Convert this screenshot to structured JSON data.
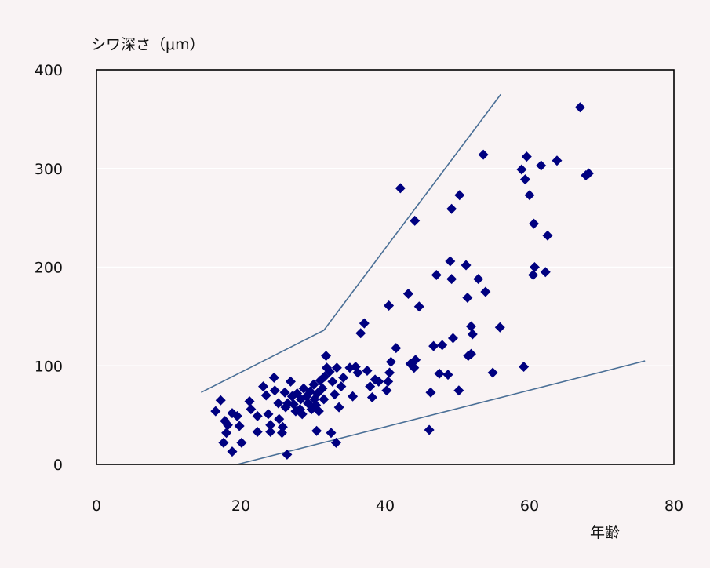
{
  "chart_data": {
    "type": "scatter",
    "title": "",
    "xlabel": "年齢",
    "ylabel": "シワ深さ（μm）",
    "xlim": [
      0,
      80
    ],
    "ylim": [
      0,
      400
    ],
    "xticks": [
      0,
      20,
      40,
      60,
      80
    ],
    "yticks": [
      0,
      100,
      200,
      300,
      400
    ],
    "grid": "horizontal",
    "colors": {
      "points": "#000080",
      "lines": "#4a6f96",
      "grid": "#ffffff",
      "frame": "#000000"
    },
    "series": [
      {
        "marker": "diamond",
        "points": [
          [
            16.5,
            54
          ],
          [
            17.2,
            65
          ],
          [
            17.8,
            44
          ],
          [
            18,
            32
          ],
          [
            18.2,
            40
          ],
          [
            17.6,
            22
          ],
          [
            18.8,
            13
          ],
          [
            18.8,
            52
          ],
          [
            19.5,
            49
          ],
          [
            19.8,
            39
          ],
          [
            20.1,
            22
          ],
          [
            21.2,
            64
          ],
          [
            21.4,
            56
          ],
          [
            22.3,
            33
          ],
          [
            22.3,
            49
          ],
          [
            23.1,
            79
          ],
          [
            23.5,
            70
          ],
          [
            23.8,
            51
          ],
          [
            24.1,
            40
          ],
          [
            24.1,
            33
          ],
          [
            24.6,
            88
          ],
          [
            24.7,
            75
          ],
          [
            25.2,
            62
          ],
          [
            25.3,
            46
          ],
          [
            25.7,
            32
          ],
          [
            25.8,
            38
          ],
          [
            26.1,
            73
          ],
          [
            26.2,
            58
          ],
          [
            26.4,
            10
          ],
          [
            26.5,
            62
          ],
          [
            26.9,
            84
          ],
          [
            27.1,
            69
          ],
          [
            27.3,
            61
          ],
          [
            27.6,
            54
          ],
          [
            27.8,
            72
          ],
          [
            28.2,
            56
          ],
          [
            28.3,
            66
          ],
          [
            28.5,
            51
          ],
          [
            28.7,
            77
          ],
          [
            29.1,
            69
          ],
          [
            29.3,
            62
          ],
          [
            29.6,
            74
          ],
          [
            29.8,
            56
          ],
          [
            30.1,
            81
          ],
          [
            30.2,
            66
          ],
          [
            30.4,
            60
          ],
          [
            30.6,
            72
          ],
          [
            30.8,
            54
          ],
          [
            31,
            85
          ],
          [
            31.3,
            77
          ],
          [
            31.5,
            66
          ],
          [
            31.6,
            89
          ],
          [
            31.8,
            110
          ],
          [
            31.9,
            98
          ],
          [
            32.3,
            94
          ],
          [
            32.7,
            84
          ],
          [
            33,
            71
          ],
          [
            33.3,
            98
          ],
          [
            33.6,
            58
          ],
          [
            33.9,
            79
          ],
          [
            34.2,
            88
          ],
          [
            30.5,
            34
          ],
          [
            32.5,
            32
          ],
          [
            33.2,
            22
          ],
          [
            35.1,
            98
          ],
          [
            35.5,
            69
          ],
          [
            35.9,
            99
          ],
          [
            36.2,
            93
          ],
          [
            36.6,
            133
          ],
          [
            37.1,
            143
          ],
          [
            37.5,
            95
          ],
          [
            37.9,
            79
          ],
          [
            38.2,
            68
          ],
          [
            38.6,
            86
          ],
          [
            39.1,
            84
          ],
          [
            40.2,
            75
          ],
          [
            40.4,
            84
          ],
          [
            40.6,
            93
          ],
          [
            40.5,
            161
          ],
          [
            40.8,
            104
          ],
          [
            41.5,
            118
          ],
          [
            42.1,
            280
          ],
          [
            43.2,
            173
          ],
          [
            43.5,
            102
          ],
          [
            44,
            98
          ],
          [
            44.1,
            247
          ],
          [
            44.2,
            106
          ],
          [
            44.7,
            160
          ],
          [
            46.1,
            35
          ],
          [
            46.3,
            73
          ],
          [
            46.7,
            120
          ],
          [
            47.1,
            192
          ],
          [
            47.5,
            92
          ],
          [
            47.9,
            121
          ],
          [
            48.7,
            91
          ],
          [
            49,
            206
          ],
          [
            49.2,
            188
          ],
          [
            49.2,
            259
          ],
          [
            49.4,
            128
          ],
          [
            50.2,
            75
          ],
          [
            50.3,
            273
          ],
          [
            51.2,
            202
          ],
          [
            51.5,
            110
          ],
          [
            51.4,
            169
          ],
          [
            51.9,
            140
          ],
          [
            51.9,
            112
          ],
          [
            52.1,
            132
          ],
          [
            52.9,
            188
          ],
          [
            53.6,
            314
          ],
          [
            53.9,
            175
          ],
          [
            54.9,
            93
          ],
          [
            55.9,
            139
          ],
          [
            58.9,
            299
          ],
          [
            59.2,
            99
          ],
          [
            59.4,
            289
          ],
          [
            59.6,
            312
          ],
          [
            60,
            273
          ],
          [
            60.6,
            244
          ],
          [
            60.7,
            200
          ],
          [
            60.5,
            192
          ],
          [
            61.6,
            303
          ],
          [
            62.2,
            195
          ],
          [
            62.5,
            232
          ],
          [
            63.8,
            308
          ],
          [
            67,
            362
          ],
          [
            67.8,
            293
          ],
          [
            68.2,
            295
          ]
        ]
      }
    ],
    "reference_lines": [
      [
        [
          14.5,
          73
        ],
        [
          31.5,
          136
        ],
        [
          56,
          375
        ]
      ],
      [
        [
          19.5,
          0
        ],
        [
          76,
          105
        ]
      ]
    ]
  }
}
